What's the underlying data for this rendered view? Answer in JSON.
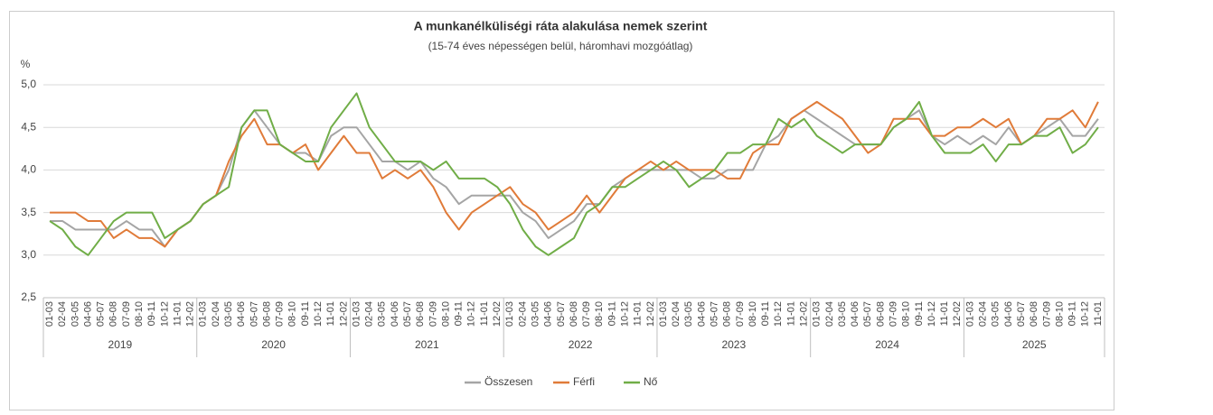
{
  "chart_data": {
    "type": "line",
    "title": "A munkanélküliségi ráta alakulása nemek szerint",
    "subtitle": "(15-74 éves népességen belül, háromhavi mozgóátlag)",
    "y_label": "%",
    "ylim": [
      2.5,
      5
    ],
    "yticks": [
      {
        "value": 2.5,
        "label": "2,5"
      },
      {
        "value": 3,
        "label": "3,0"
      },
      {
        "value": 3.5,
        "label": "3,5"
      },
      {
        "value": 4,
        "label": "4,0"
      },
      {
        "value": 4.5,
        "label": "4,5"
      },
      {
        "value": 5,
        "label": "5,0"
      }
    ],
    "grid": true,
    "legend": "bottom",
    "years": [
      "2019",
      "2020",
      "2021",
      "2022",
      "2023",
      "2024",
      "2025"
    ],
    "categories": [
      "01-03",
      "02-04",
      "03-05",
      "04-06",
      "05-07",
      "06-08",
      "07-09",
      "08-10",
      "09-11",
      "10-12",
      "11-01",
      "12-02",
      "01-03",
      "02-04",
      "03-05",
      "04-06",
      "05-07",
      "06-08",
      "07-09",
      "08-10",
      "09-11",
      "10-12",
      "11-01",
      "12-02",
      "01-03",
      "02-04",
      "03-05",
      "04-06",
      "05-07",
      "06-08",
      "07-09",
      "08-10",
      "09-11",
      "10-12",
      "11-01",
      "12-02",
      "01-03",
      "02-04",
      "03-05",
      "04-06",
      "05-07",
      "06-08",
      "07-09",
      "08-10",
      "09-11",
      "10-12",
      "11-01",
      "12-02",
      "01-03",
      "02-04",
      "03-05",
      "04-06",
      "05-07",
      "06-08",
      "07-09",
      "08-10",
      "09-11",
      "10-12",
      "11-01",
      "12-02",
      "01-03",
      "02-04",
      "03-05",
      "04-06",
      "05-07",
      "06-08",
      "07-09",
      "08-10",
      "09-11",
      "10-12",
      "11-01",
      "12-02",
      "01-03",
      "02-04",
      "03-05",
      "04-06",
      "05-07",
      "06-08",
      "07-09",
      "08-10",
      "09-11",
      "10-12",
      "11-01"
    ],
    "series": [
      {
        "name": "Összesen",
        "color": "#a5a5a5",
        "values": [
          3.4,
          3.4,
          3.3,
          3.3,
          3.3,
          3.3,
          3.4,
          3.3,
          3.3,
          3.1,
          3.3,
          3.4,
          3.6,
          3.7,
          4.0,
          4.5,
          4.7,
          4.5,
          4.3,
          4.2,
          4.2,
          4.1,
          4.4,
          4.5,
          4.5,
          4.3,
          4.1,
          4.1,
          4.0,
          4.1,
          3.9,
          3.8,
          3.6,
          3.7,
          3.7,
          3.7,
          3.7,
          3.5,
          3.4,
          3.2,
          3.3,
          3.4,
          3.6,
          3.6,
          3.8,
          3.9,
          4.0,
          4.0,
          4.0,
          4.0,
          4.0,
          3.9,
          3.9,
          4.0,
          4.0,
          4.0,
          4.3,
          4.4,
          4.6,
          4.7,
          4.6,
          4.5,
          4.4,
          4.3,
          4.3,
          4.3,
          4.5,
          4.6,
          4.7,
          4.4,
          4.3,
          4.4,
          4.3,
          4.4,
          4.3,
          4.5,
          4.3,
          4.4,
          4.5,
          4.6,
          4.4,
          4.4,
          4.6
        ]
      },
      {
        "name": "Férfi",
        "color": "#e07b39",
        "values": [
          3.5,
          3.5,
          3.5,
          3.4,
          3.4,
          3.2,
          3.3,
          3.2,
          3.2,
          3.1,
          3.3,
          3.4,
          3.6,
          3.7,
          4.1,
          4.4,
          4.6,
          4.3,
          4.3,
          4.2,
          4.3,
          4.0,
          4.2,
          4.4,
          4.2,
          4.2,
          3.9,
          4.0,
          3.9,
          4.0,
          3.8,
          3.5,
          3.3,
          3.5,
          3.6,
          3.7,
          3.8,
          3.6,
          3.5,
          3.3,
          3.4,
          3.5,
          3.7,
          3.5,
          3.7,
          3.9,
          4.0,
          4.1,
          4.0,
          4.1,
          4.0,
          4.0,
          4.0,
          3.9,
          3.9,
          4.2,
          4.3,
          4.3,
          4.6,
          4.7,
          4.8,
          4.7,
          4.6,
          4.4,
          4.2,
          4.3,
          4.6,
          4.6,
          4.6,
          4.4,
          4.4,
          4.5,
          4.5,
          4.6,
          4.5,
          4.6,
          4.3,
          4.4,
          4.6,
          4.6,
          4.7,
          4.5,
          4.8
        ]
      },
      {
        "name": "Nő",
        "color": "#70ad47",
        "values": [
          3.4,
          3.3,
          3.1,
          3.0,
          3.2,
          3.4,
          3.5,
          3.5,
          3.5,
          3.2,
          3.3,
          3.4,
          3.6,
          3.7,
          3.8,
          4.5,
          4.7,
          4.7,
          4.3,
          4.2,
          4.1,
          4.1,
          4.5,
          4.7,
          4.9,
          4.5,
          4.3,
          4.1,
          4.1,
          4.1,
          4.0,
          4.1,
          3.9,
          3.9,
          3.9,
          3.8,
          3.6,
          3.3,
          3.1,
          3.0,
          3.1,
          3.2,
          3.5,
          3.6,
          3.8,
          3.8,
          3.9,
          4.0,
          4.1,
          4.0,
          3.8,
          3.9,
          4.0,
          4.2,
          4.2,
          4.3,
          4.3,
          4.6,
          4.5,
          4.6,
          4.4,
          4.3,
          4.2,
          4.3,
          4.3,
          4.3,
          4.5,
          4.6,
          4.8,
          4.4,
          4.2,
          4.2,
          4.2,
          4.3,
          4.1,
          4.3,
          4.3,
          4.4,
          4.4,
          4.5,
          4.2,
          4.3,
          4.5
        ]
      }
    ]
  }
}
